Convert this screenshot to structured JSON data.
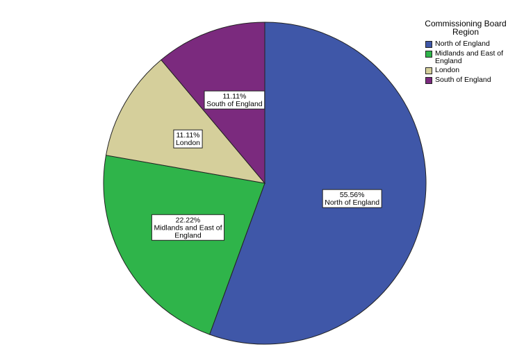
{
  "chart_data": {
    "type": "pie",
    "title": "",
    "legend_title": "Commissioning Board Region",
    "legend_position": "top-right",
    "series": [
      {
        "name": "North of England",
        "value": 55.56,
        "label_value": "55.56%",
        "label_lines": [
          "55.56%",
          "North of England"
        ],
        "color": "#3f57a8"
      },
      {
        "name": "Midlands and East of England",
        "value": 22.22,
        "label_value": "22.22%",
        "label_lines": [
          "22.22%",
          "Midlands and East of",
          "England"
        ],
        "color": "#2fb44a"
      },
      {
        "name": "London",
        "value": 11.11,
        "label_value": "11.11%",
        "label_lines": [
          "11.11%",
          "London"
        ],
        "color": "#d5cf9b"
      },
      {
        "name": "South of England",
        "value": 11.11,
        "label_value": "11.11%",
        "label_lines": [
          "11.11%",
          "South of England"
        ],
        "color": "#7b2a7e"
      }
    ]
  }
}
